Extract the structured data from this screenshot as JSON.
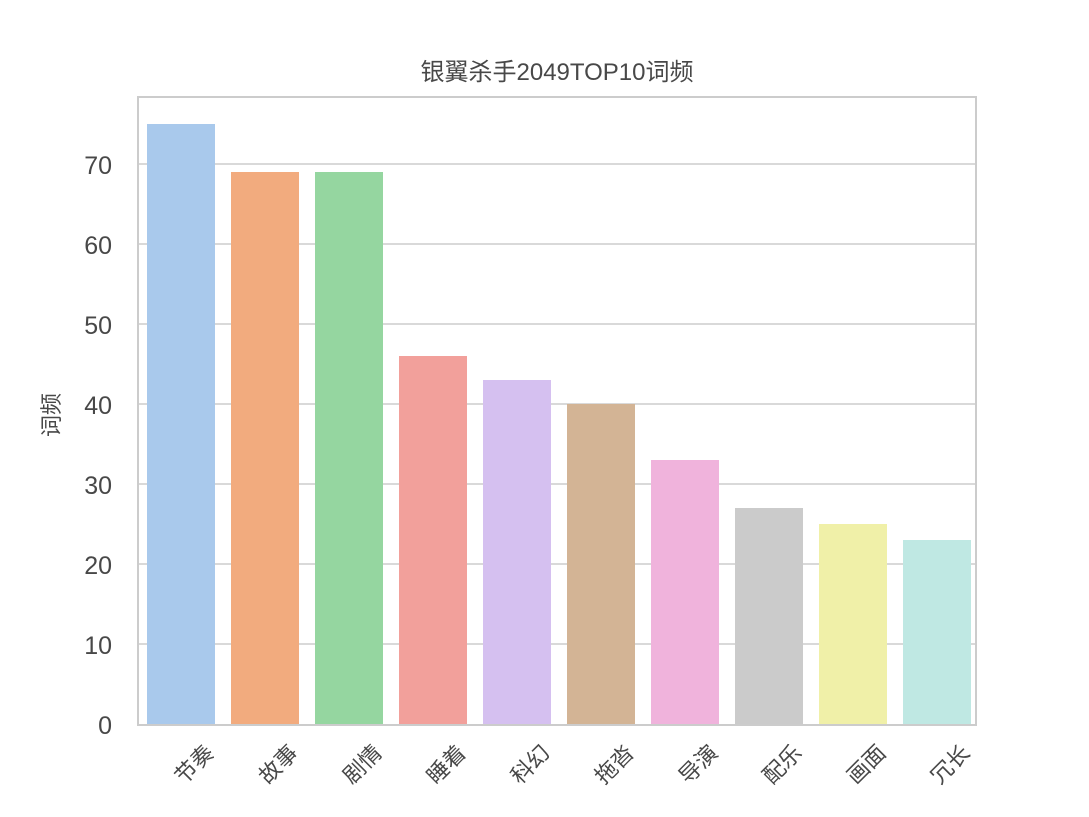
{
  "chart_data": {
    "type": "bar",
    "title": "银翼杀手2049TOP10词频",
    "xlabel": "",
    "ylabel": "词频",
    "categories": [
      "节奏",
      "故事",
      "剧情",
      "睡着",
      "科幻",
      "拖沓",
      "导演",
      "配乐",
      "画面",
      "冗长"
    ],
    "values": [
      75,
      69,
      69,
      46,
      43,
      40,
      33,
      27,
      25,
      23
    ],
    "bar_colors": [
      "#a9c9ec",
      "#f2ab7e",
      "#95d6a0",
      "#f2a09b",
      "#d5c0f0",
      "#d3b495",
      "#f0b3dc",
      "#cbcbcb",
      "#f0f0a8",
      "#bfe8e3"
    ],
    "yticks": [
      0,
      10,
      20,
      30,
      40,
      50,
      60,
      70
    ],
    "ylim": [
      0,
      78.75
    ],
    "grid": true,
    "legend_position": "none",
    "xtick_rotation": 45,
    "bar_width_fraction": 0.8,
    "colors": {
      "background": "#ffffff",
      "grid": "#d9d9d9",
      "spine": "#cccccc",
      "text": "#484848"
    }
  }
}
